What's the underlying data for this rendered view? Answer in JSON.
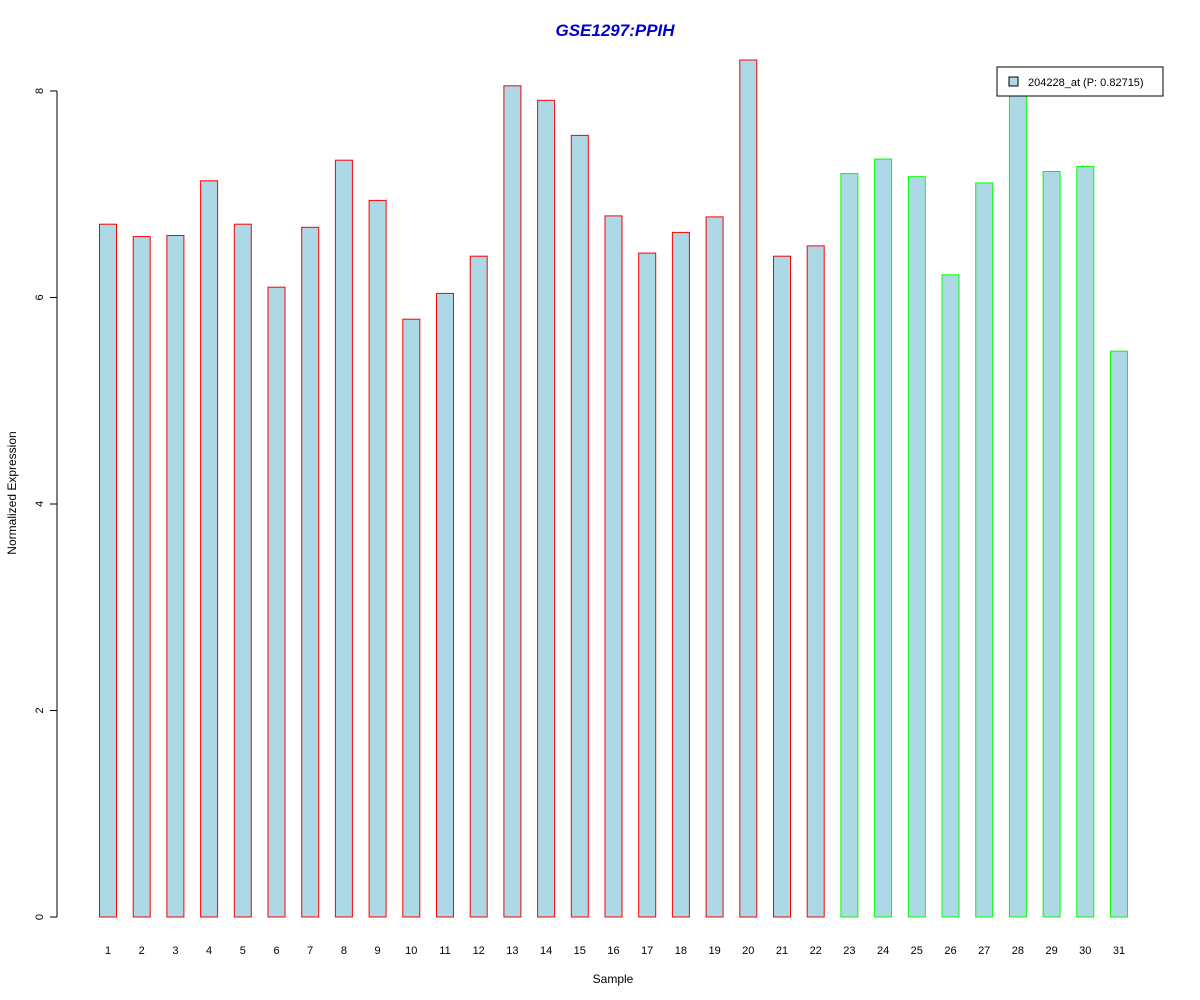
{
  "chart_data": {
    "type": "bar",
    "title": "GSE1297:PPIH",
    "xlabel": "Sample",
    "ylabel": "Normalized Expression",
    "ylim": [
      0,
      8.3
    ],
    "yticks": [
      0,
      2,
      4,
      6,
      8
    ],
    "grid": false,
    "categories": [
      "1",
      "2",
      "3",
      "4",
      "5",
      "6",
      "7",
      "8",
      "9",
      "10",
      "11",
      "12",
      "13",
      "14",
      "15",
      "16",
      "17",
      "18",
      "19",
      "20",
      "21",
      "22",
      "23",
      "24",
      "25",
      "26",
      "27",
      "28",
      "29",
      "30",
      "31"
    ],
    "values": [
      6.71,
      6.59,
      6.6,
      7.13,
      6.71,
      6.1,
      6.68,
      7.33,
      6.94,
      5.79,
      6.04,
      6.4,
      8.05,
      7.91,
      7.57,
      6.79,
      6.43,
      6.63,
      6.78,
      8.3,
      6.4,
      6.5,
      7.2,
      7.34,
      7.17,
      6.22,
      7.11,
      8.0,
      7.22,
      7.27,
      5.48
    ],
    "group_of_bar": [
      "a",
      "a",
      "a",
      "a",
      "a",
      "a",
      "a",
      "a",
      "a",
      "a",
      "a",
      "a",
      "a",
      "a",
      "a",
      "a",
      "a",
      "a",
      "a",
      "a",
      "a",
      "a",
      "b",
      "b",
      "b",
      "b",
      "b",
      "b",
      "b",
      "b",
      "b"
    ],
    "colors": {
      "fill": "#add8e6",
      "group_a_border": "#ff0000",
      "group_b_border": "#00ff00",
      "title": "#0000cc"
    },
    "legend": {
      "position": "top-right",
      "entries": [
        {
          "label": "204228_at (P: 0.82715)",
          "fill": "#add8e6"
        }
      ]
    }
  }
}
